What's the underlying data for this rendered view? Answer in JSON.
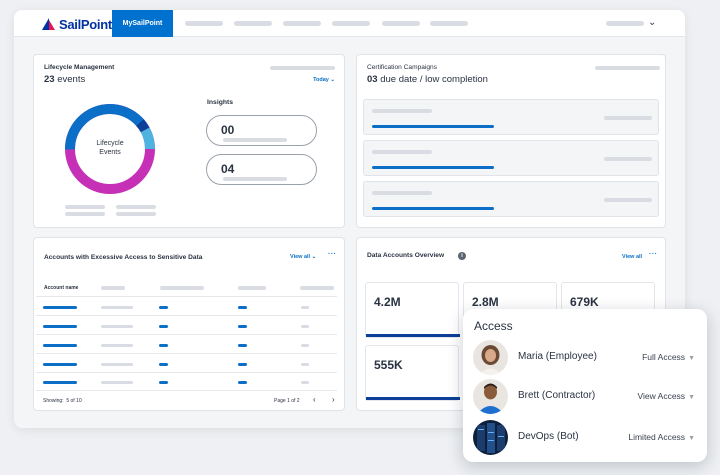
{
  "brand": {
    "logo_text": "SailPoint",
    "nav_active": "MySailPoint"
  },
  "colors": {
    "brand_blue": "#0033a1",
    "accent_blue": "#0071ce",
    "donut_magenta": "#c530b6",
    "donut_blue": "#0b6fc7",
    "donut_light": "#4fb3e0",
    "donut_navy": "#0b3f99"
  },
  "icons": {
    "dropdown": "chevron-down-icon",
    "more": "more-dots-icon",
    "info": "info-icon",
    "prev": "chevron-left-icon",
    "next": "chevron-right-icon"
  },
  "lifecycle": {
    "title": "Lifecycle Management",
    "count": "23",
    "count_unit": "events",
    "filter": "Today",
    "donut_label_1": "Lifecycle",
    "donut_label_2": "Events",
    "insights_title": "Insights",
    "insights": [
      "00",
      "04"
    ]
  },
  "certification": {
    "title": "Certification Campaigns",
    "count": "03",
    "count_text": "due date / low completion"
  },
  "accounts": {
    "title": "Accounts with Excessive Access to Sensitive Data",
    "view_all": "View all",
    "col_account": "Account name",
    "showing_label": "Showing:",
    "showing_value": "5 of 10",
    "page": "Page 1 of 2"
  },
  "data_overview": {
    "title": "Data Accounts Overview",
    "view_all": "View all",
    "tiles": [
      "4.2M",
      "2.8M",
      "679K",
      "555K"
    ]
  },
  "access_panel": {
    "title": "Access",
    "rows": [
      {
        "name": "Maria (Employee)",
        "level": "Full Access"
      },
      {
        "name": "Brett (Contractor)",
        "level": "View Access"
      },
      {
        "name": "DevOps (Bot)",
        "level": "Limited Access"
      }
    ]
  }
}
